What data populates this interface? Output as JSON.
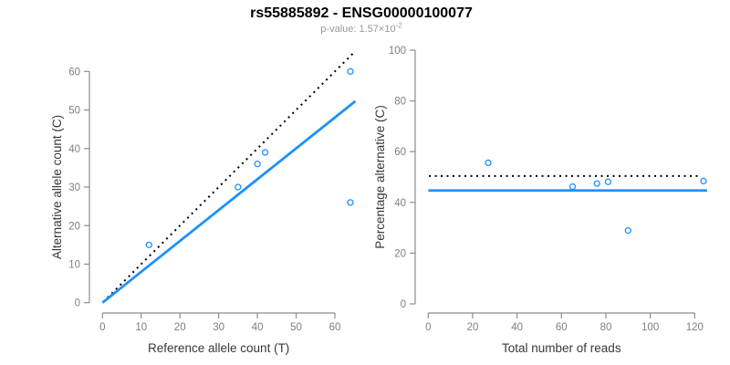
{
  "header": {
    "title": "rs55885892 - ENSG00000100077",
    "subtitle_prefix": "p-value: 1.57×10",
    "subtitle_exponent": "-2"
  },
  "colors": {
    "accent_blue": "#1E90FF",
    "dotted_line_black": "#000000",
    "axis_gray": "#8C8C8C",
    "tick_label_gray": "#7F7F7F",
    "axis_title_color": "#383838",
    "subtitle_gray": "#9A9A9A",
    "background": "#FFFFFF"
  },
  "chart_data": [
    {
      "type": "scatter",
      "name": "allele-counts-panel",
      "xlabel": "Reference allele count (T)",
      "ylabel": "Alternative allele count (C)",
      "xticks": [
        0,
        10,
        20,
        30,
        40,
        50,
        60
      ],
      "yticks": [
        0,
        10,
        20,
        30,
        40,
        50,
        60
      ],
      "xlim": [
        0,
        65.3
      ],
      "ylim": [
        0,
        65.3
      ],
      "grid": false,
      "points": [
        {
          "x": 12,
          "y": 15
        },
        {
          "x": 35,
          "y": 30
        },
        {
          "x": 40,
          "y": 36
        },
        {
          "x": 42,
          "y": 39
        },
        {
          "x": 64,
          "y": 60
        },
        {
          "x": 64,
          "y": 26
        }
      ],
      "lines": [
        {
          "name": "expected-identity-line",
          "style": "dotted",
          "color": "#000000",
          "x": [
            0.2,
            65.3
          ],
          "y": [
            0.2,
            65.3
          ]
        },
        {
          "name": "fitted-ratio-line",
          "style": "solid",
          "color": "#1E90FF",
          "x": [
            0,
            65.3
          ],
          "y": [
            0,
            52.3
          ]
        }
      ]
    },
    {
      "type": "scatter",
      "name": "percentage-panel",
      "xlabel": "Total number of reads",
      "ylabel": "Percentage alternative (C)",
      "xticks": [
        0,
        20,
        40,
        60,
        80,
        100,
        120
      ],
      "yticks": [
        0,
        20,
        40,
        60,
        80,
        100
      ],
      "xlim": [
        0,
        126
      ],
      "ylim": [
        0,
        100
      ],
      "grid": false,
      "points": [
        {
          "x": 27,
          "y": 55.6
        },
        {
          "x": 65,
          "y": 46.2
        },
        {
          "x": 76,
          "y": 47.4
        },
        {
          "x": 81,
          "y": 48.1
        },
        {
          "x": 90,
          "y": 28.9
        },
        {
          "x": 124,
          "y": 48.4
        }
      ],
      "lines": [
        {
          "name": "expected-50-percent-line",
          "style": "dotted",
          "color": "#000000",
          "x": [
            0.3,
            122
          ],
          "y": [
            50.4,
            50.4
          ]
        },
        {
          "name": "mean-percentage-line",
          "style": "solid",
          "color": "#1E90FF",
          "x": [
            0,
            125.6
          ],
          "y": [
            44.7,
            44.7
          ]
        }
      ]
    }
  ]
}
